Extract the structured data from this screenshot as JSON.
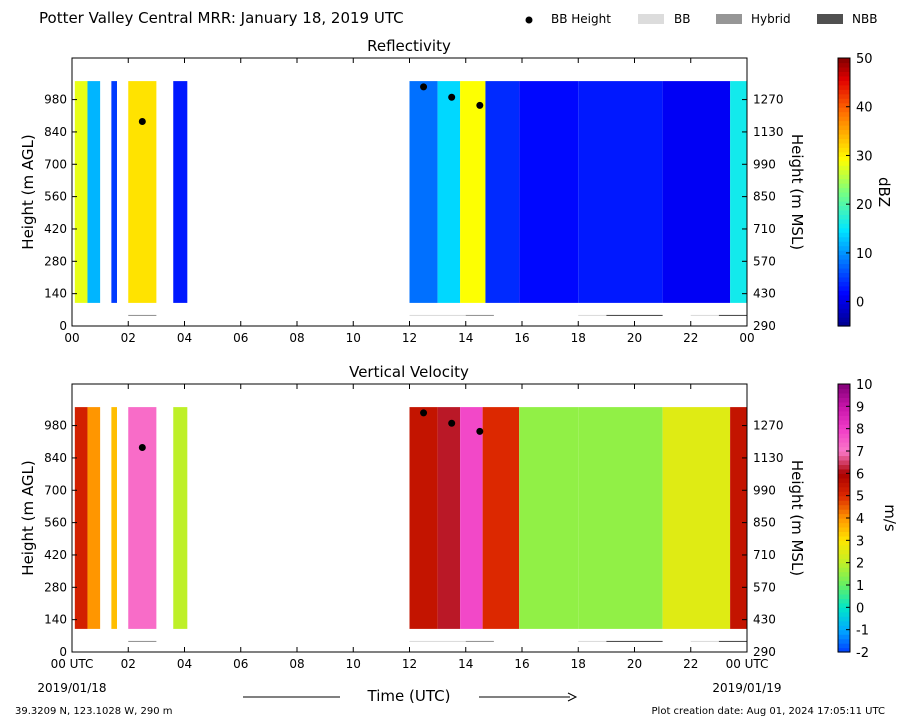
{
  "figure": {
    "title": "Potter Valley Central MRR:  January 18, 2019 UTC",
    "xlabel": "Time (UTC)",
    "start_date": "2019/01/18",
    "end_date": "2019/01/19",
    "location": "39.3209 N, 123.1028 W, 290 m",
    "creation_date": "Plot creation date: Aug 01, 2024 17:05:11 UTC"
  },
  "legend": [
    {
      "label": "BB Height",
      "kind": "marker",
      "color": "#000000"
    },
    {
      "label": "BB",
      "kind": "box",
      "color": "#dcdcdc"
    },
    {
      "label": "Hybrid",
      "kind": "box",
      "color": "#969696"
    },
    {
      "label": "NBB",
      "kind": "box",
      "color": "#505050"
    }
  ],
  "chart_data": [
    {
      "type": "heatmap",
      "title": "Reflectivity",
      "ylabel": "Height (m AGL)",
      "y2label": "Height (m MSL)",
      "xlim": [
        0,
        24
      ],
      "ylim": [
        0,
        1160
      ],
      "x_ticks": [
        "00",
        "02",
        "04",
        "06",
        "08",
        "10",
        "12",
        "14",
        "16",
        "18",
        "20",
        "22",
        "00"
      ],
      "y_ticks": [
        0,
        140,
        280,
        420,
        560,
        700,
        840,
        980
      ],
      "y2_ticks": [
        290,
        430,
        570,
        710,
        850,
        990,
        1130,
        1270
      ],
      "colorbar": {
        "label": "dBZ",
        "min": -5,
        "max": 50,
        "ticks": [
          0,
          10,
          20,
          30,
          40,
          50
        ],
        "colormap": "jet"
      },
      "columns": [
        {
          "t0": 0.1,
          "t1": 0.55,
          "value": 28
        },
        {
          "t0": 0.55,
          "t1": 1.0,
          "value": 12
        },
        {
          "t0": 1.4,
          "t1": 1.6,
          "value": 5
        },
        {
          "t0": 2.0,
          "t1": 3.0,
          "value": 31
        },
        {
          "t0": 3.6,
          "t1": 4.1,
          "value": 3
        },
        {
          "t0": 12.0,
          "t1": 13.0,
          "value": 8
        },
        {
          "t0": 13.0,
          "t1": 13.8,
          "value": 14
        },
        {
          "t0": 13.8,
          "t1": 14.7,
          "value": 29
        },
        {
          "t0": 14.7,
          "t1": 15.9,
          "value": 4
        },
        {
          "t0": 15.9,
          "t1": 18.0,
          "value": 2
        },
        {
          "t0": 18.0,
          "t1": 21.0,
          "value": 3
        },
        {
          "t0": 21.0,
          "t1": 23.4,
          "value": 1
        },
        {
          "t0": 23.4,
          "t1": 24.0,
          "value": 16
        }
      ],
      "bb_height": [
        {
          "t": 2.5,
          "h": 885
        },
        {
          "t": 12.5,
          "h": 1035
        },
        {
          "t": 13.5,
          "h": 990
        },
        {
          "t": 14.5,
          "h": 955
        }
      ],
      "bb_types": [
        {
          "t0": 2.0,
          "t1": 3.0,
          "type": "Hybrid"
        },
        {
          "t0": 12.0,
          "t1": 14.0,
          "type": "BB"
        },
        {
          "t0": 14.0,
          "t1": 15.0,
          "type": "Hybrid"
        },
        {
          "t0": 18.0,
          "t1": 19.0,
          "type": "BB"
        },
        {
          "t0": 19.0,
          "t1": 21.0,
          "type": "NBB"
        },
        {
          "t0": 22.0,
          "t1": 23.0,
          "type": "BB"
        },
        {
          "t0": 23.0,
          "t1": 24.0,
          "type": "NBB"
        }
      ]
    },
    {
      "type": "heatmap",
      "title": "Vertical Velocity",
      "ylabel": "Height (m AGL)",
      "y2label": "Height (m MSL)",
      "xlim": [
        0,
        24
      ],
      "ylim": [
        0,
        1160
      ],
      "x_ticks": [
        "00 UTC",
        "02",
        "04",
        "06",
        "08",
        "10",
        "12",
        "14",
        "16",
        "18",
        "20",
        "22",
        "00 UTC"
      ],
      "y_ticks": [
        0,
        140,
        280,
        420,
        560,
        700,
        840,
        980
      ],
      "y2_ticks": [
        290,
        430,
        570,
        710,
        850,
        990,
        1130,
        1270
      ],
      "colorbar": {
        "label": "m/s",
        "min": -2,
        "max": 10,
        "ticks": [
          -2,
          -1,
          0,
          1,
          2,
          3,
          4,
          5,
          6,
          7,
          8,
          9,
          10
        ],
        "colormap": "velocity"
      },
      "columns": [
        {
          "t0": 0.1,
          "t1": 0.55,
          "value": 5.2
        },
        {
          "t0": 0.55,
          "t1": 1.0,
          "value": 4.0
        },
        {
          "t0": 1.4,
          "t1": 1.6,
          "value": 3.5
        },
        {
          "t0": 2.0,
          "t1": 3.0,
          "value": 7.2
        },
        {
          "t0": 3.6,
          "t1": 4.1,
          "value": 2.0
        },
        {
          "t0": 12.0,
          "t1": 13.0,
          "value": 5.5
        },
        {
          "t0": 13.0,
          "t1": 13.8,
          "value": 6.2
        },
        {
          "t0": 13.8,
          "t1": 14.6,
          "value": 7.8
        },
        {
          "t0": 14.6,
          "t1": 15.9,
          "value": 5.0
        },
        {
          "t0": 15.9,
          "t1": 18.0,
          "value": 1.5
        },
        {
          "t0": 18.0,
          "t1": 21.0,
          "value": 1.5
        },
        {
          "t0": 21.0,
          "t1": 23.4,
          "value": 2.5
        },
        {
          "t0": 23.4,
          "t1": 24.0,
          "value": 5.5
        }
      ],
      "bb_height": [
        {
          "t": 2.5,
          "h": 885
        },
        {
          "t": 12.5,
          "h": 1035
        },
        {
          "t": 13.5,
          "h": 990
        },
        {
          "t": 14.5,
          "h": 955
        }
      ],
      "bb_types": [
        {
          "t0": 2.0,
          "t1": 3.0,
          "type": "Hybrid"
        },
        {
          "t0": 12.0,
          "t1": 14.0,
          "type": "BB"
        },
        {
          "t0": 14.0,
          "t1": 15.0,
          "type": "Hybrid"
        },
        {
          "t0": 18.0,
          "t1": 19.0,
          "type": "BB"
        },
        {
          "t0": 19.0,
          "t1": 21.0,
          "type": "NBB"
        },
        {
          "t0": 22.0,
          "t1": 23.0,
          "type": "BB"
        },
        {
          "t0": 23.0,
          "t1": 24.0,
          "type": "NBB"
        }
      ]
    }
  ]
}
